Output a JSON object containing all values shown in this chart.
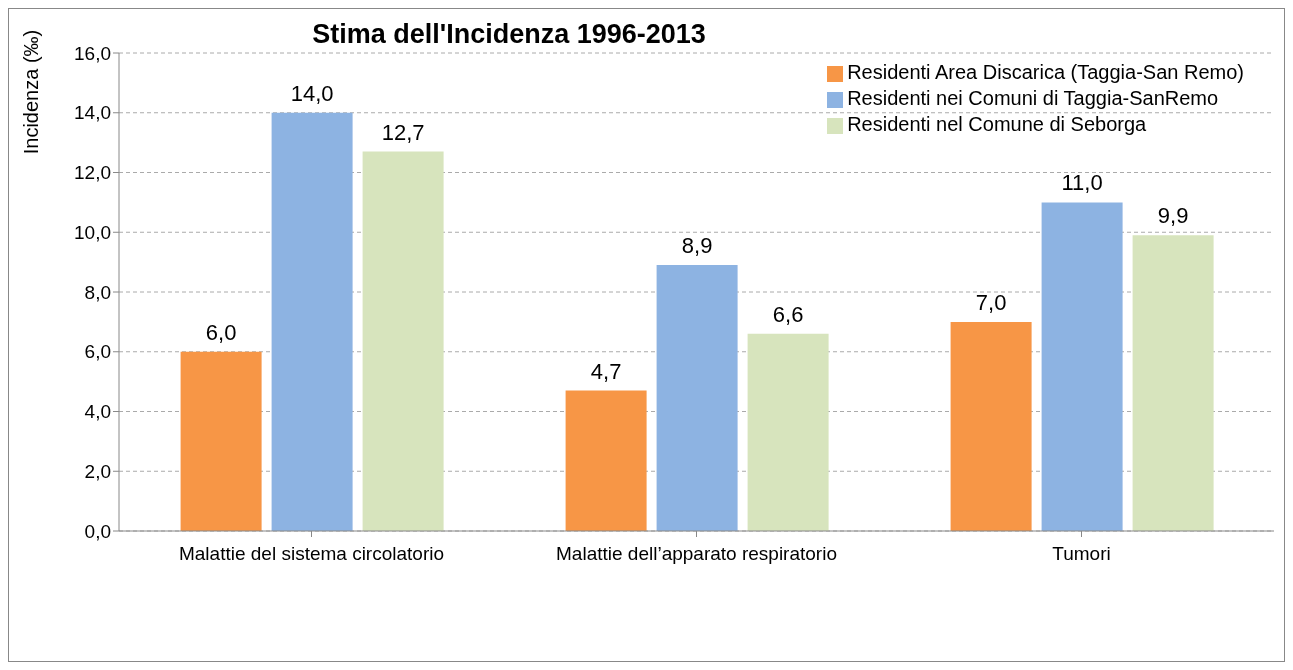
{
  "chart_data": {
    "type": "bar",
    "title": "Stima dell'Incidenza 1996-2013",
    "ylabel": "Incidenza (‰)",
    "categories": [
      "Malattie del sistema circolatorio",
      "Malattie dell’apparato respiratorio",
      "Tumori"
    ],
    "series": [
      {
        "name": "Residenti Area Discarica (Taggia-San Remo)",
        "color": "#f79646",
        "values": [
          6.0,
          4.7,
          7.0
        ],
        "value_labels": [
          "6,0",
          "4,7",
          "7,0"
        ]
      },
      {
        "name": "Residenti nei Comuni di Taggia-SanRemo",
        "color": "#8db3e2",
        "values": [
          14.0,
          8.9,
          11.0
        ],
        "value_labels": [
          "14,0",
          "8,9",
          "11,0"
        ]
      },
      {
        "name": "Residenti nel Comune di Seborga",
        "color": "#d7e4bd",
        "values": [
          12.7,
          6.6,
          9.9
        ],
        "value_labels": [
          "12,7",
          "6,6",
          "9,9"
        ]
      }
    ],
    "ylim": [
      0,
      16
    ],
    "yticks": [
      {
        "value": 0,
        "label": "0,0"
      },
      {
        "value": 2,
        "label": "2,0"
      },
      {
        "value": 4,
        "label": "4,0"
      },
      {
        "value": 6,
        "label": "6,0"
      },
      {
        "value": 8,
        "label": "8,0"
      },
      {
        "value": 10,
        "label": "10,0"
      },
      {
        "value": 12,
        "label": "12,0"
      },
      {
        "value": 14,
        "label": "14,0"
      },
      {
        "value": 16,
        "label": "16,0"
      }
    ],
    "grid": "y",
    "legend": "top right"
  }
}
